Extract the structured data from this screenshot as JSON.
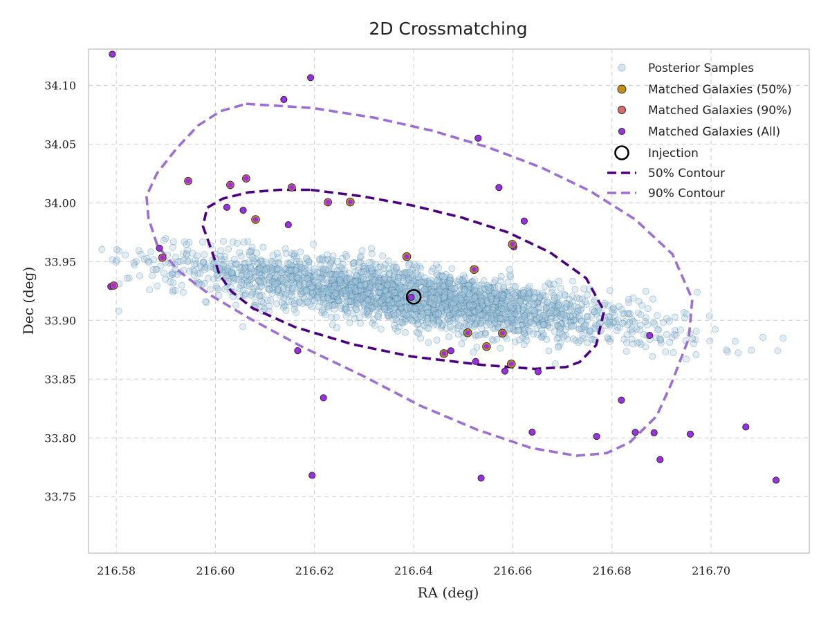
{
  "chart_data": {
    "type": "scatter",
    "title": "2D Crossmatching",
    "xlabel": "RA (deg)",
    "ylabel": "Dec (deg)",
    "xlim": [
      216.5744,
      216.7198
    ],
    "ylim": [
      33.7019,
      34.1308
    ],
    "xticks": [
      216.58,
      216.6,
      216.62,
      216.64,
      216.66,
      216.68,
      216.7
    ],
    "xtick_labels": [
      "216.58",
      "216.60",
      "216.62",
      "216.64",
      "216.66",
      "216.68",
      "216.70"
    ],
    "yticks": [
      33.75,
      33.8,
      33.85,
      33.9,
      33.95,
      34.0,
      34.05,
      34.1
    ],
    "ytick_labels": [
      "33.75",
      "33.80",
      "33.85",
      "33.90",
      "33.95",
      "34.00",
      "34.05",
      "34.10"
    ],
    "grid": true,
    "legend_position": "top-right",
    "posterior": {
      "name": "Posterior Samples",
      "color": "#4c88b0",
      "count_drawn": 2600,
      "center": [
        216.64,
        33.92
      ],
      "major_axis_angle_deg": -35,
      "sigma_major_deg": 0.027,
      "sigma_minor_deg": 0.0105
    },
    "contours": [
      {
        "name": "50% Contour",
        "color": "#4b0082",
        "points": [
          [
            216.6192,
            34.0111
          ],
          [
            216.6295,
            34.0056
          ],
          [
            216.6397,
            33.9978
          ],
          [
            216.6496,
            33.9876
          ],
          [
            216.659,
            33.9749
          ],
          [
            216.6675,
            33.9578
          ],
          [
            216.6748,
            33.9358
          ],
          [
            216.6784,
            33.9079
          ],
          [
            216.6768,
            33.8789
          ],
          [
            216.6735,
            33.8646
          ],
          [
            216.6708,
            33.8603
          ],
          [
            216.6644,
            33.8587
          ],
          [
            216.6538,
            33.8621
          ],
          [
            216.6395,
            33.8693
          ],
          [
            216.6277,
            33.8796
          ],
          [
            216.6161,
            33.8942
          ],
          [
            216.6075,
            33.9104
          ],
          [
            216.6032,
            33.9247
          ],
          [
            216.6008,
            33.939
          ],
          [
            216.5995,
            33.9563
          ],
          [
            216.5975,
            33.9799
          ],
          [
            216.5983,
            33.9957
          ],
          [
            216.6015,
            34.0036
          ],
          [
            216.6066,
            34.0089
          ],
          [
            216.6129,
            34.0111
          ],
          [
            216.6192,
            34.0111
          ]
        ]
      },
      {
        "name": "90% Contour",
        "color": "#9b6fd6",
        "points": [
          [
            216.6062,
            34.0842
          ],
          [
            216.6196,
            34.0807
          ],
          [
            216.6321,
            34.0724
          ],
          [
            216.6439,
            34.0612
          ],
          [
            216.6551,
            34.0471
          ],
          [
            216.6657,
            34.0301
          ],
          [
            216.6756,
            34.01
          ],
          [
            216.6847,
            33.9858
          ],
          [
            216.6922,
            33.9563
          ],
          [
            216.6962,
            33.9179
          ],
          [
            216.6955,
            33.8848
          ],
          [
            216.692,
            33.8464
          ],
          [
            216.689,
            33.8184
          ],
          [
            216.6836,
            33.7962
          ],
          [
            216.6789,
            33.787
          ],
          [
            216.6728,
            33.7848
          ],
          [
            216.6637,
            33.7914
          ],
          [
            216.6528,
            33.807
          ],
          [
            216.6414,
            33.8272
          ],
          [
            216.63,
            33.8522
          ],
          [
            216.6176,
            33.8773
          ],
          [
            216.607,
            33.9014
          ],
          [
            216.5989,
            33.9217
          ],
          [
            216.5925,
            33.9423
          ],
          [
            216.5883,
            33.9635
          ],
          [
            216.5865,
            33.9869
          ],
          [
            216.5861,
            34.0056
          ],
          [
            216.5882,
            34.0251
          ],
          [
            216.5922,
            34.0465
          ],
          [
            216.5965,
            34.0658
          ],
          [
            216.6011,
            34.0781
          ],
          [
            216.6062,
            34.0842
          ]
        ]
      }
    ],
    "matched_50": {
      "name": "Matched Galaxies (50%)",
      "color": "#c48f14",
      "points": [
        [
          216.6081,
          33.9858
        ],
        [
          216.6272,
          34.0007
        ],
        [
          216.6386,
          33.9542
        ],
        [
          216.6522,
          33.9433
        ],
        [
          216.6599,
          33.9647
        ],
        [
          216.6509,
          33.8894
        ],
        [
          216.6461,
          33.8717
        ],
        [
          216.6547,
          33.8777
        ],
        [
          216.6579,
          33.8891
        ],
        [
          216.6597,
          33.8629
        ]
      ]
    },
    "matched_90": {
      "name": "Matched Galaxies (90%)",
      "color": "#d96a6a",
      "points": [
        [
          216.5795,
          33.9296
        ],
        [
          216.5893,
          33.9533
        ],
        [
          216.5945,
          34.0186
        ],
        [
          216.603,
          34.0152
        ],
        [
          216.6062,
          34.0207
        ],
        [
          216.6154,
          34.0131
        ],
        [
          216.6227,
          34.0005
        ]
      ]
    },
    "matched_all": {
      "name": "Matched Galaxies (All)",
      "color": "#9b30e3",
      "points": [
        [
          216.5792,
          34.1264
        ],
        [
          216.5789,
          33.9288
        ],
        [
          216.5887,
          33.9614
        ],
        [
          216.6138,
          34.0879
        ],
        [
          216.6192,
          34.1065
        ],
        [
          216.6147,
          33.9813
        ],
        [
          216.6166,
          33.8742
        ],
        [
          216.6218,
          33.8341
        ],
        [
          216.6195,
          33.7681
        ],
        [
          216.6395,
          33.9196
        ],
        [
          216.6475,
          33.8741
        ],
        [
          216.6525,
          33.865
        ],
        [
          216.653,
          34.055
        ],
        [
          216.6572,
          34.013
        ],
        [
          216.6602,
          33.9625
        ],
        [
          216.6584,
          33.8568
        ],
        [
          216.6623,
          33.9845
        ],
        [
          216.6651,
          33.8563
        ],
        [
          216.6639,
          33.8048
        ],
        [
          216.6769,
          33.8012
        ],
        [
          216.6819,
          33.8321
        ],
        [
          216.6847,
          33.8047
        ],
        [
          216.6876,
          33.8872
        ],
        [
          216.6897,
          33.7815
        ],
        [
          216.6885,
          33.8043
        ],
        [
          216.6958,
          33.8032
        ],
        [
          216.707,
          33.8093
        ],
        [
          216.7131,
          33.764
        ],
        [
          216.6536,
          33.7658
        ],
        [
          216.6056,
          33.9937
        ],
        [
          216.6023,
          33.9962
        ]
      ]
    },
    "injection": {
      "name": "Injection",
      "ra": 216.64,
      "dec": 33.92
    }
  },
  "legend": {
    "items": [
      {
        "label": "Posterior Samples"
      },
      {
        "label": "Matched Galaxies (50%)"
      },
      {
        "label": "Matched Galaxies (90%)"
      },
      {
        "label": "Matched Galaxies (All)"
      },
      {
        "label": "Injection"
      },
      {
        "label": "50% Contour"
      },
      {
        "label": "90% Contour"
      }
    ]
  }
}
